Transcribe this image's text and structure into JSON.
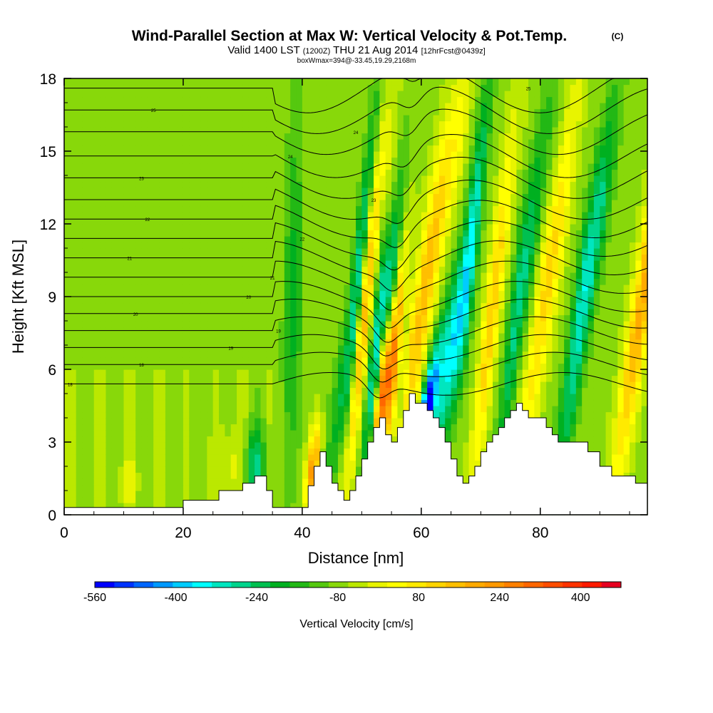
{
  "chart_data": {
    "type": "heatmap",
    "title": "Wind-Parallel Section at Max W: Vertical Velocity & Pot.Temp.",
    "title_mark": "(C)",
    "subtitle": {
      "valid": "Valid 1400 LST",
      "utc": "(1200Z)",
      "date": "THU 21 Aug 2014",
      "forecast": "[12hrFcst@0439z]"
    },
    "box_info": "boxWmax=394@-33.45,19.29,2168m",
    "xlabel": "Distance [nm]",
    "ylabel": "Height [Kft MSL]",
    "xlim": [
      0,
      98
    ],
    "ylim": [
      0,
      18
    ],
    "x_ticks": [
      0,
      20,
      40,
      60,
      80
    ],
    "y_ticks": [
      0,
      3,
      6,
      9,
      12,
      15,
      18
    ],
    "colorbar": {
      "label": "Vertical Velocity [cm/s]",
      "min": -560,
      "max": 480,
      "tick_values": [
        -560,
        -400,
        -240,
        -80,
        80,
        240,
        400
      ],
      "tick_labels": [
        "-560",
        "-400",
        "-240",
        "-80",
        "80",
        "240",
        "400"
      ],
      "colors": [
        "#0000ff",
        "#0033ff",
        "#0066ff",
        "#0099ff",
        "#00ccff",
        "#00ffff",
        "#00e6bf",
        "#00d48c",
        "#00c050",
        "#00b020",
        "#22b815",
        "#55c80f",
        "#88d80a",
        "#bbe800",
        "#e8f400",
        "#ffff00",
        "#ffea00",
        "#ffd400",
        "#ffbf00",
        "#ffaa00",
        "#ff9900",
        "#ff8000",
        "#ff6600",
        "#ff4d00",
        "#ff3300",
        "#ff1a00",
        "#e60020"
      ]
    },
    "terrain": {
      "x": [
        0,
        20,
        20,
        26,
        26,
        30,
        30,
        32,
        32,
        34,
        34,
        35,
        35,
        41,
        41,
        42,
        42,
        43,
        43,
        44,
        44,
        45,
        45,
        46,
        46,
        47,
        47,
        48,
        48,
        49,
        49,
        50,
        50,
        51,
        51,
        52,
        52,
        53,
        53,
        54,
        54,
        55,
        55,
        56,
        56,
        57,
        57,
        58,
        58,
        59,
        59,
        61,
        61,
        62,
        62,
        63,
        63,
        64,
        64,
        65,
        65,
        66,
        66,
        67,
        67,
        68,
        68,
        69,
        69,
        70,
        70,
        71,
        71,
        72,
        72,
        73,
        73,
        74,
        74,
        75,
        75,
        76,
        76,
        77,
        77,
        78,
        78,
        81,
        81,
        82,
        82,
        83,
        83,
        88,
        88,
        90,
        90,
        92,
        92,
        96,
        96,
        98
      ],
      "y": [
        0.3,
        0.3,
        0.6,
        0.6,
        1.0,
        1.0,
        1.3,
        1.3,
        1.6,
        1.6,
        1.0,
        1.0,
        0.3,
        0.3,
        1.2,
        1.2,
        2.0,
        2.0,
        2.6,
        2.6,
        2.0,
        2.0,
        1.3,
        1.3,
        1.0,
        1.0,
        0.6,
        0.6,
        1.0,
        1.0,
        1.6,
        1.6,
        2.3,
        2.3,
        3.0,
        3.0,
        3.6,
        3.6,
        4.0,
        4.0,
        3.3,
        3.3,
        3.0,
        3.0,
        3.6,
        3.6,
        4.3,
        4.3,
        5.0,
        5.0,
        4.6,
        4.6,
        4.3,
        4.3,
        4.0,
        4.0,
        3.6,
        3.6,
        3.0,
        3.0,
        2.3,
        2.3,
        1.6,
        1.6,
        1.3,
        1.3,
        1.6,
        1.6,
        2.0,
        2.0,
        2.6,
        2.6,
        3.0,
        3.0,
        3.3,
        3.3,
        3.6,
        3.6,
        4.0,
        4.0,
        4.3,
        4.3,
        4.6,
        4.6,
        4.3,
        4.3,
        4.0,
        4.0,
        3.6,
        3.6,
        3.3,
        3.3,
        3.0,
        3.0,
        2.6,
        2.6,
        2.0,
        2.0,
        1.6,
        1.6,
        1.3,
        1.3
      ]
    },
    "updrafts": [
      {
        "x": 11,
        "h": 2.0,
        "amp": 60
      },
      {
        "x": 28,
        "h": 3.0,
        "amp": 80
      },
      {
        "x": 41.5,
        "h": 3.0,
        "amp": 300
      },
      {
        "x": 47,
        "h": 13.0,
        "amp": 260
      },
      {
        "x": 53,
        "h": 8.5,
        "amp": 420
      },
      {
        "x": 58,
        "h": 14.5,
        "amp": 230
      },
      {
        "x": 69,
        "h": 13.0,
        "amp": 200
      },
      {
        "x": 78,
        "h": 14.5,
        "amp": 180
      },
      {
        "x": 93,
        "h": 13.5,
        "amp": 260
      }
    ],
    "downdrafts": [
      {
        "x": 32,
        "h": 3.0,
        "amp": -200
      },
      {
        "x": 38,
        "h": 14.0,
        "amp": -120
      },
      {
        "x": 45,
        "h": 14.0,
        "amp": -250
      },
      {
        "x": 51,
        "h": 11.0,
        "amp": -300
      },
      {
        "x": 61,
        "h": 5.5,
        "amp": -540
      },
      {
        "x": 63,
        "h": 14.0,
        "amp": -320
      },
      {
        "x": 74,
        "h": 14.0,
        "amp": -200
      },
      {
        "x": 84,
        "h": 14.0,
        "amp": -260
      }
    ],
    "theta_contours": {
      "base_heights": [
        5.4,
        6.2,
        6.9,
        7.6,
        8.3,
        9.0,
        9.8,
        10.6,
        11.4,
        12.2,
        13.0,
        13.9,
        14.8,
        15.8,
        16.7,
        17.6
      ],
      "labels": [
        "18",
        "18",
        "19",
        "19",
        "20",
        "20",
        "21",
        "21",
        "22",
        "22",
        "23",
        "23",
        "24",
        "24",
        "25",
        "25"
      ],
      "label_x": [
        1,
        13,
        28,
        36,
        12,
        31,
        35,
        11,
        40,
        14,
        52,
        13,
        38,
        49,
        15,
        78
      ]
    }
  }
}
